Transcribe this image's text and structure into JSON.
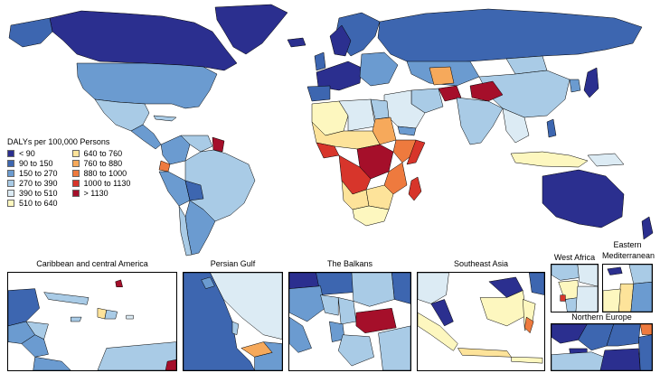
{
  "legend": {
    "title": "DALYs per 100,000 Persons",
    "bins": [
      {
        "label": "< 90",
        "color": "#2b2f8f"
      },
      {
        "label": "90  to  150",
        "color": "#3d66b0"
      },
      {
        "label": "150  to  270",
        "color": "#6b9bd0"
      },
      {
        "label": "270  to  390",
        "color": "#a9cbe6"
      },
      {
        "label": "390  to  510",
        "color": "#dcebf4"
      },
      {
        "label": "510  to  640",
        "color": "#fdf7bf"
      },
      {
        "label": "640  to  760",
        "color": "#fde39a"
      },
      {
        "label": "760  to  880",
        "color": "#f6a95b"
      },
      {
        "label": "880  to  1000",
        "color": "#ee7a3e"
      },
      {
        "label": "1000  to  1130",
        "color": "#d7352b"
      },
      {
        "label": "> 1130",
        "color": "#a50f2a"
      }
    ]
  },
  "insets": {
    "caribbean": "Caribbean and central America",
    "persian_gulf": "Persian Gulf",
    "balkans": "The Balkans",
    "southeast_asia": "Southeast Asia",
    "west_africa": "West Africa",
    "eastern_med_line1": "Eastern",
    "eastern_med_line2": "Mediterranean",
    "northern_europe": "Northern Europe"
  },
  "colors": {
    "ocean": "#ffffff",
    "border": "#000000"
  }
}
